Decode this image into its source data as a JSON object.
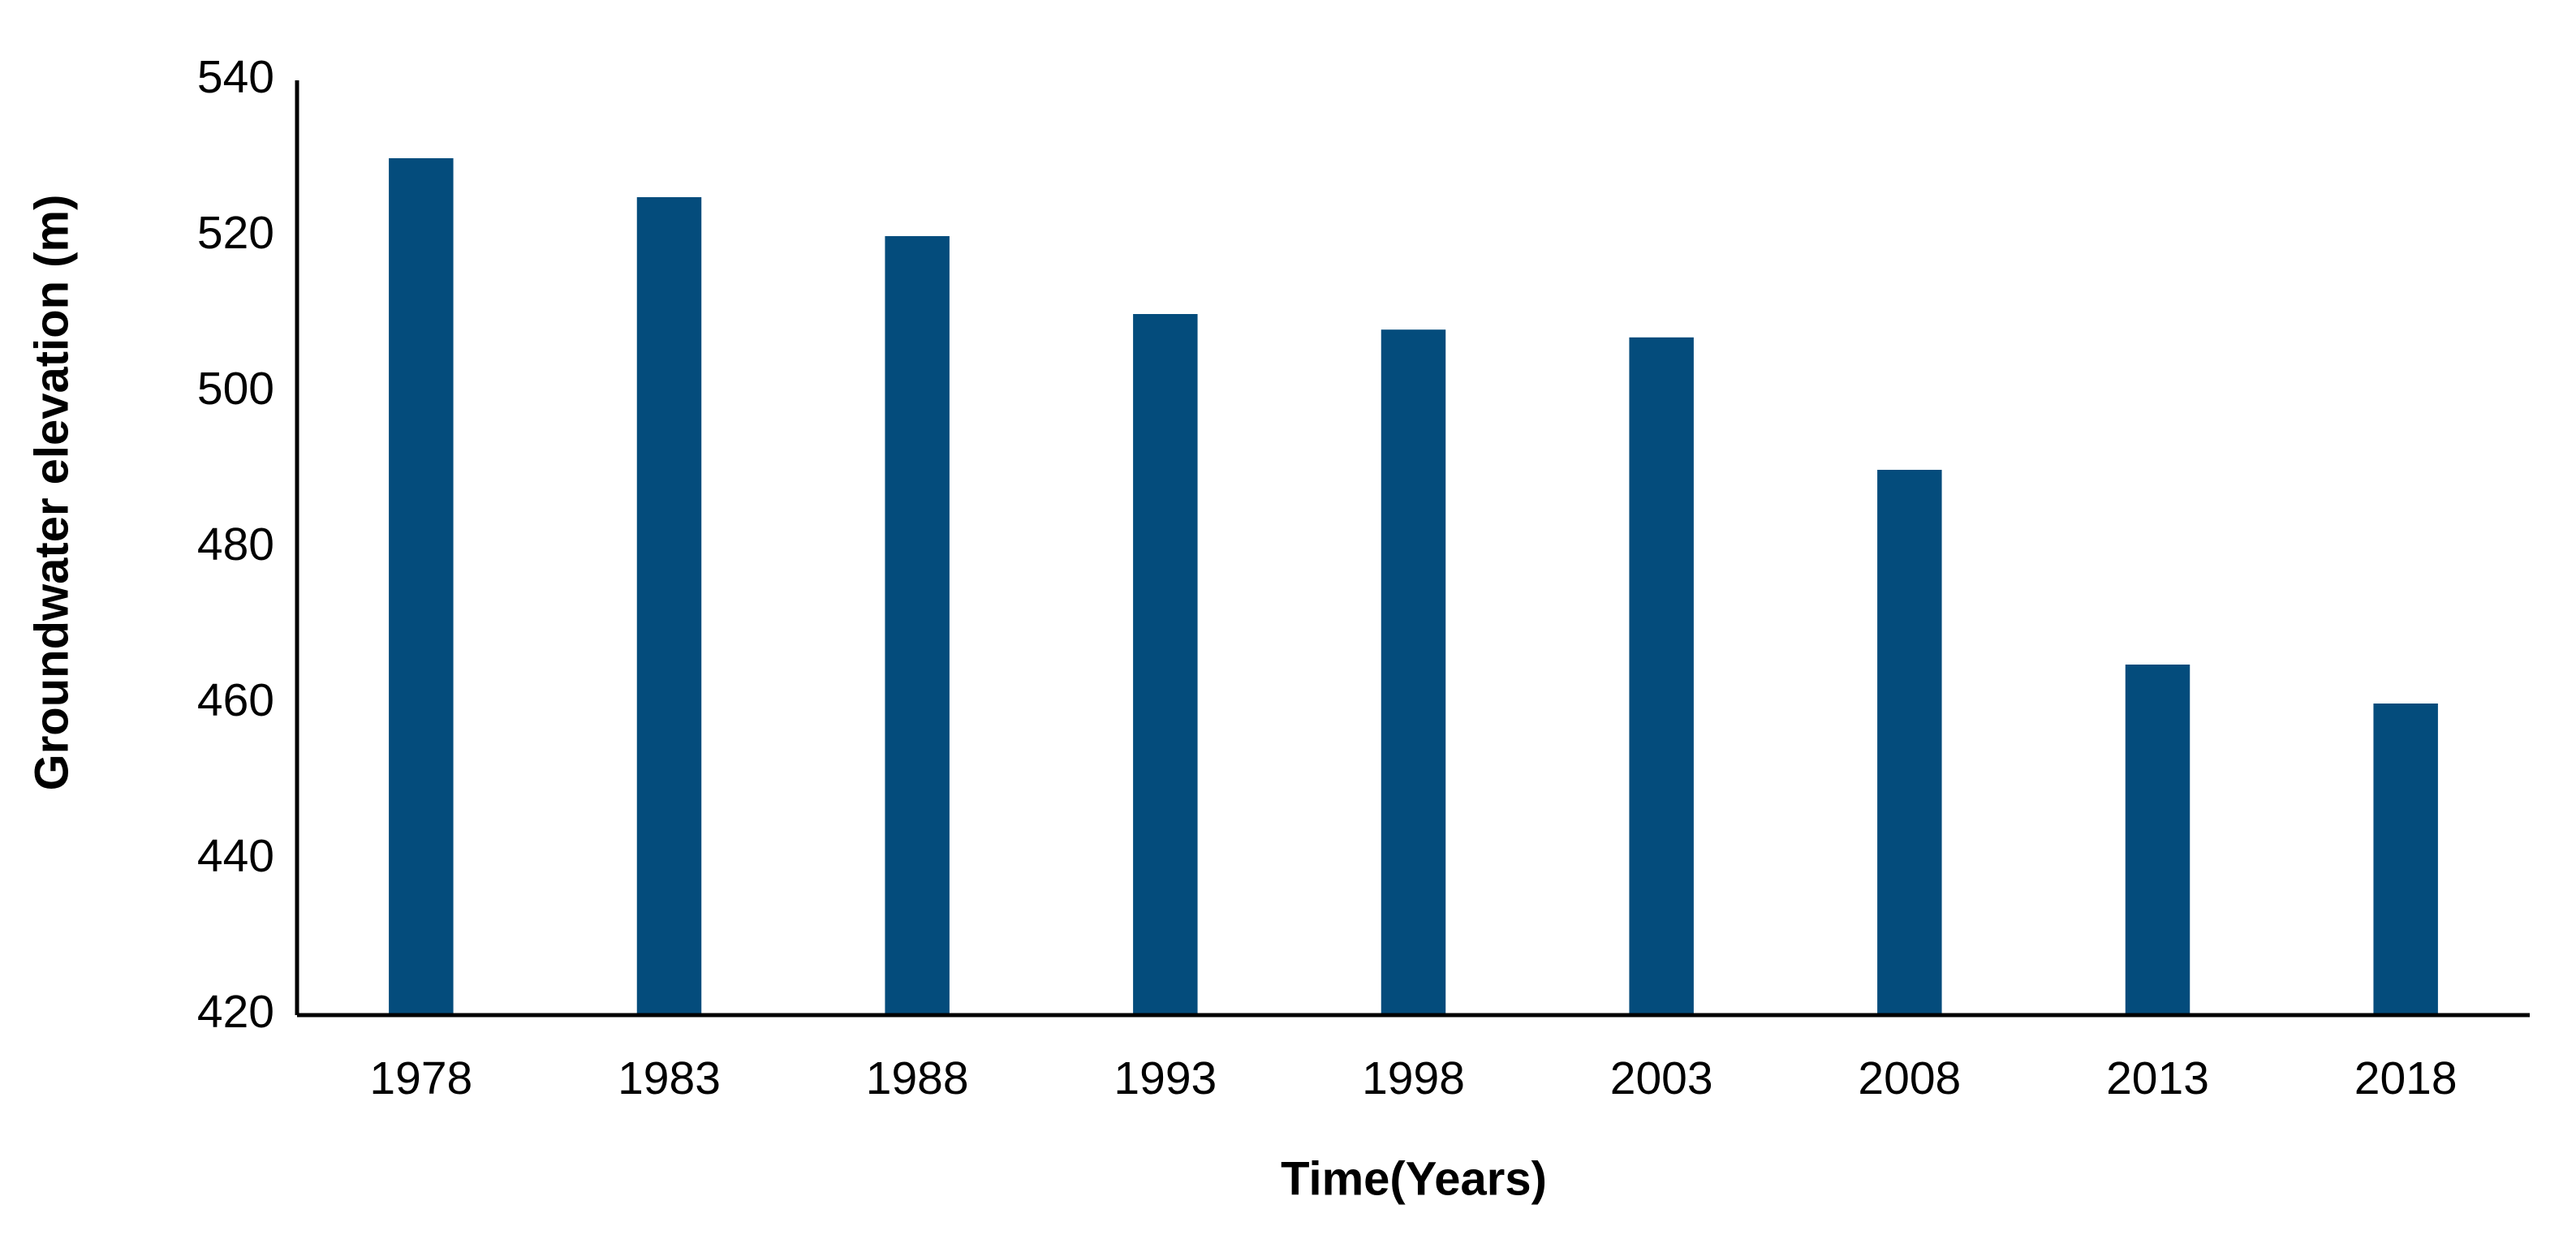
{
  "chart_data": {
    "type": "bar",
    "x_label": "Time(Years)",
    "y_label": "Groundwater elevation (m)",
    "categories": [
      "1978",
      "1983",
      "1988",
      "1993",
      "1998",
      "2003",
      "2008",
      "2013",
      "2018"
    ],
    "values": [
      530,
      525,
      520,
      510,
      508,
      507,
      490,
      465,
      460
    ],
    "color": "#044c7c",
    "ylim": [
      420,
      540
    ],
    "yticks": [
      420,
      440,
      460,
      480,
      500,
      520,
      540
    ],
    "grid": false
  }
}
